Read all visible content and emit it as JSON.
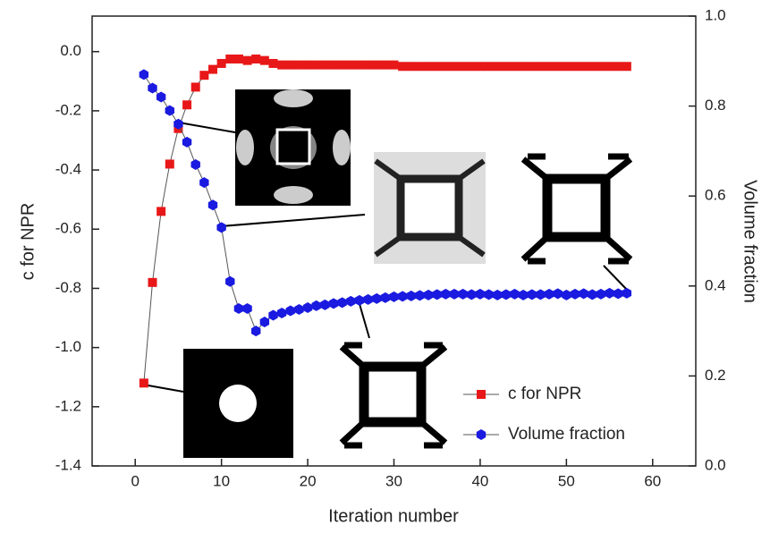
{
  "chart_data": {
    "type": "line",
    "xlabel": "Iteration number",
    "ylabel": "c for NPR",
    "y2label": "Volume fraction",
    "x": [
      1,
      2,
      3,
      4,
      5,
      6,
      7,
      8,
      9,
      10,
      11,
      12,
      13,
      14,
      15,
      16,
      17,
      18,
      19,
      20,
      21,
      22,
      23,
      24,
      25,
      26,
      27,
      28,
      29,
      30,
      31,
      32,
      33,
      34,
      35,
      36,
      37,
      38,
      39,
      40,
      41,
      42,
      43,
      44,
      45,
      46,
      47,
      48,
      49,
      50,
      51,
      52,
      53,
      54,
      55,
      56,
      57
    ],
    "series": [
      {
        "name": "c for NPR",
        "color": "#e81818",
        "marker": "square",
        "values": [
          -1.12,
          -0.78,
          -0.54,
          -0.38,
          -0.26,
          -0.18,
          -0.12,
          -0.08,
          -0.06,
          -0.04,
          -0.025,
          -0.025,
          -0.03,
          -0.025,
          -0.03,
          -0.04,
          -0.045,
          -0.045,
          -0.045,
          -0.045,
          -0.045,
          -0.045,
          -0.045,
          -0.045,
          -0.045,
          -0.045,
          -0.045,
          -0.045,
          -0.045,
          -0.045,
          -0.05,
          -0.05,
          -0.05,
          -0.05,
          -0.05,
          -0.05,
          -0.05,
          -0.05,
          -0.05,
          -0.05,
          -0.05,
          -0.05,
          -0.05,
          -0.05,
          -0.05,
          -0.05,
          -0.05,
          -0.05,
          -0.05,
          -0.05,
          -0.05,
          -0.05,
          -0.05,
          -0.05,
          -0.05,
          -0.05,
          -0.05
        ]
      },
      {
        "name": "Volume fraction",
        "color": "#1a1ae0",
        "marker": "hexagon",
        "axis": "y2",
        "values": [
          0.87,
          0.84,
          0.82,
          0.79,
          0.76,
          0.72,
          0.67,
          0.63,
          0.58,
          0.53,
          0.41,
          0.35,
          0.35,
          0.3,
          0.32,
          0.335,
          0.34,
          0.345,
          0.348,
          0.352,
          0.356,
          0.358,
          0.361,
          0.363,
          0.366,
          0.368,
          0.37,
          0.372,
          0.374,
          0.376,
          0.377,
          0.378,
          0.379,
          0.38,
          0.381,
          0.382,
          0.382,
          0.382,
          0.381,
          0.382,
          0.381,
          0.38,
          0.381,
          0.382,
          0.38,
          0.381,
          0.381,
          0.382,
          0.383,
          0.38,
          0.382,
          0.383,
          0.381,
          0.382,
          0.384,
          0.383,
          0.384
        ]
      }
    ],
    "xlim": [
      -5,
      65
    ],
    "xticks": [
      0,
      10,
      20,
      30,
      40,
      50,
      60
    ],
    "ylim": [
      -1.4,
      0.12
    ],
    "yticks": [
      -1.4,
      -1.2,
      {
        "value": -1,
        "label": "-1.0"
      },
      -0.8,
      -0.6,
      -0.4,
      -0.2,
      {
        "value": 0,
        "label": "0.0"
      }
    ],
    "y2lim": [
      0,
      1
    ],
    "y2ticks": [
      {
        "value": 0,
        "label": "0.0"
      },
      0.2,
      0.4,
      0.6,
      0.8,
      {
        "value": 1,
        "label": "1.0"
      }
    ],
    "legend": "lower right",
    "grid": false
  }
}
